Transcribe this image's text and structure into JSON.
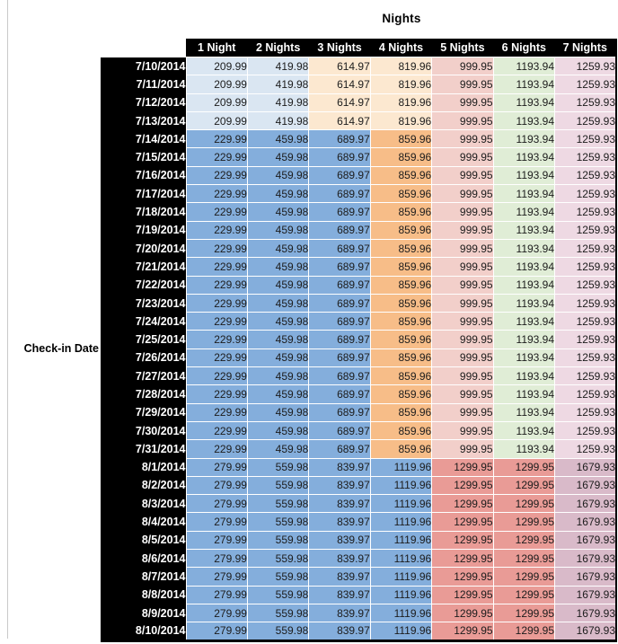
{
  "chart_data": {
    "type": "table",
    "title": "Nights",
    "row_axis_label": "Check-in Date",
    "columns": [
      "1 Night",
      "2 Nights",
      "3 Nights",
      "4 Nights",
      "5 Nights",
      "6 Nights",
      "7 Nights"
    ],
    "rows": [
      {
        "date": "7/10/2014",
        "band": "A",
        "values": [
          209.99,
          419.98,
          614.97,
          819.96,
          999.95,
          1193.94,
          1259.93
        ]
      },
      {
        "date": "7/11/2014",
        "band": "A",
        "values": [
          209.99,
          419.98,
          614.97,
          819.96,
          999.95,
          1193.94,
          1259.93
        ]
      },
      {
        "date": "7/12/2014",
        "band": "A",
        "values": [
          209.99,
          419.98,
          614.97,
          819.96,
          999.95,
          1193.94,
          1259.93
        ]
      },
      {
        "date": "7/13/2014",
        "band": "A",
        "values": [
          209.99,
          419.98,
          614.97,
          819.96,
          999.95,
          1193.94,
          1259.93
        ]
      },
      {
        "date": "7/14/2014",
        "band": "B",
        "values": [
          229.99,
          459.98,
          689.97,
          859.96,
          999.95,
          1193.94,
          1259.93
        ]
      },
      {
        "date": "7/15/2014",
        "band": "B",
        "values": [
          229.99,
          459.98,
          689.97,
          859.96,
          999.95,
          1193.94,
          1259.93
        ]
      },
      {
        "date": "7/16/2014",
        "band": "B",
        "values": [
          229.99,
          459.98,
          689.97,
          859.96,
          999.95,
          1193.94,
          1259.93
        ]
      },
      {
        "date": "7/17/2014",
        "band": "B",
        "values": [
          229.99,
          459.98,
          689.97,
          859.96,
          999.95,
          1193.94,
          1259.93
        ]
      },
      {
        "date": "7/18/2014",
        "band": "B",
        "values": [
          229.99,
          459.98,
          689.97,
          859.96,
          999.95,
          1193.94,
          1259.93
        ]
      },
      {
        "date": "7/19/2014",
        "band": "B",
        "values": [
          229.99,
          459.98,
          689.97,
          859.96,
          999.95,
          1193.94,
          1259.93
        ]
      },
      {
        "date": "7/20/2014",
        "band": "B",
        "values": [
          229.99,
          459.98,
          689.97,
          859.96,
          999.95,
          1193.94,
          1259.93
        ]
      },
      {
        "date": "7/21/2014",
        "band": "B",
        "values": [
          229.99,
          459.98,
          689.97,
          859.96,
          999.95,
          1193.94,
          1259.93
        ]
      },
      {
        "date": "7/22/2014",
        "band": "B",
        "values": [
          229.99,
          459.98,
          689.97,
          859.96,
          999.95,
          1193.94,
          1259.93
        ]
      },
      {
        "date": "7/23/2014",
        "band": "B",
        "values": [
          229.99,
          459.98,
          689.97,
          859.96,
          999.95,
          1193.94,
          1259.93
        ]
      },
      {
        "date": "7/24/2014",
        "band": "B",
        "values": [
          229.99,
          459.98,
          689.97,
          859.96,
          999.95,
          1193.94,
          1259.93
        ]
      },
      {
        "date": "7/25/2014",
        "band": "B",
        "values": [
          229.99,
          459.98,
          689.97,
          859.96,
          999.95,
          1193.94,
          1259.93
        ]
      },
      {
        "date": "7/26/2014",
        "band": "B",
        "values": [
          229.99,
          459.98,
          689.97,
          859.96,
          999.95,
          1193.94,
          1259.93
        ]
      },
      {
        "date": "7/27/2014",
        "band": "B",
        "values": [
          229.99,
          459.98,
          689.97,
          859.96,
          999.95,
          1193.94,
          1259.93
        ]
      },
      {
        "date": "7/28/2014",
        "band": "B",
        "values": [
          229.99,
          459.98,
          689.97,
          859.96,
          999.95,
          1193.94,
          1259.93
        ]
      },
      {
        "date": "7/29/2014",
        "band": "B",
        "values": [
          229.99,
          459.98,
          689.97,
          859.96,
          999.95,
          1193.94,
          1259.93
        ]
      },
      {
        "date": "7/30/2014",
        "band": "B",
        "values": [
          229.99,
          459.98,
          689.97,
          859.96,
          999.95,
          1193.94,
          1259.93
        ]
      },
      {
        "date": "7/31/2014",
        "band": "B",
        "values": [
          229.99,
          459.98,
          689.97,
          859.96,
          999.95,
          1193.94,
          1259.93
        ]
      },
      {
        "date": "8/1/2014",
        "band": "C",
        "values": [
          279.99,
          559.98,
          839.97,
          1119.96,
          1299.95,
          1299.95,
          1679.93
        ]
      },
      {
        "date": "8/2/2014",
        "band": "C",
        "values": [
          279.99,
          559.98,
          839.97,
          1119.96,
          1299.95,
          1299.95,
          1679.93
        ]
      },
      {
        "date": "8/3/2014",
        "band": "C",
        "values": [
          279.99,
          559.98,
          839.97,
          1119.96,
          1299.95,
          1299.95,
          1679.93
        ]
      },
      {
        "date": "8/4/2014",
        "band": "C",
        "values": [
          279.99,
          559.98,
          839.97,
          1119.96,
          1299.95,
          1299.95,
          1679.93
        ]
      },
      {
        "date": "8/5/2014",
        "band": "C",
        "values": [
          279.99,
          559.98,
          839.97,
          1119.96,
          1299.95,
          1299.95,
          1679.93
        ]
      },
      {
        "date": "8/6/2014",
        "band": "C",
        "values": [
          279.99,
          559.98,
          839.97,
          1119.96,
          1299.95,
          1299.95,
          1679.93
        ]
      },
      {
        "date": "8/7/2014",
        "band": "C",
        "values": [
          279.99,
          559.98,
          839.97,
          1119.96,
          1299.95,
          1299.95,
          1679.93
        ]
      },
      {
        "date": "8/8/2014",
        "band": "C",
        "values": [
          279.99,
          559.98,
          839.97,
          1119.96,
          1299.95,
          1299.95,
          1679.93
        ]
      },
      {
        "date": "8/9/2014",
        "band": "C",
        "values": [
          279.99,
          559.98,
          839.97,
          1119.96,
          1299.95,
          1299.95,
          1679.93
        ]
      },
      {
        "date": "8/10/2014",
        "band": "C",
        "values": [
          279.99,
          559.98,
          839.97,
          1119.96,
          1299.95,
          1299.95,
          1679.93
        ]
      }
    ],
    "band_colors": {
      "A": [
        "lightBlue",
        "lightBlue",
        "lightTan",
        "lightTan",
        "lightRed",
        "lightGreen",
        "lightPurple"
      ],
      "B": [
        "medBlue",
        "medBlue",
        "medBlue",
        "medOrange",
        "lightRed",
        "lightGreen",
        "lightPurple"
      ],
      "C": [
        "medBlue",
        "medBlue",
        "medBlue",
        "medBlue",
        "medRed",
        "medRed",
        "medPurple"
      ]
    },
    "palette": {
      "lightBlue": "#dae6f2",
      "medBlue": "#84aedc",
      "lightTan": "#fce8d0",
      "medOrange": "#f7bd88",
      "lightRed": "#f2cfca",
      "medRed": "#e99b96",
      "lightGreen": "#e0edd6",
      "lightPurple": "#eed9e3",
      "medPurple": "#d9bac9"
    },
    "header_bg": "#000000",
    "header_text_color": "#ffffff",
    "legend_position": "none",
    "grid": false
  }
}
